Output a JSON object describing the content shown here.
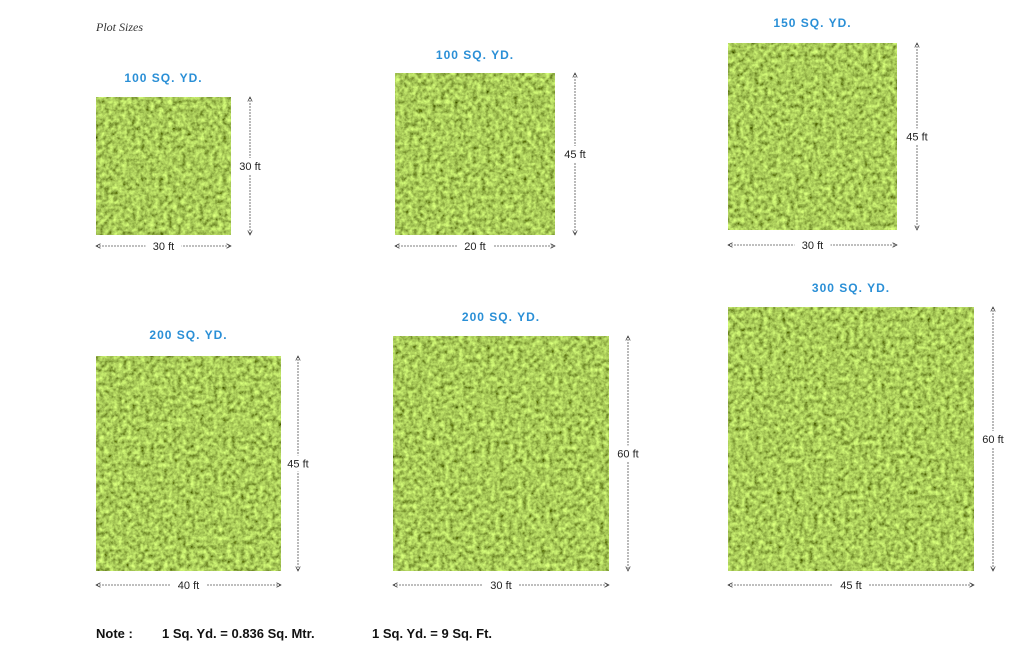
{
  "title": "Plot Sizes",
  "plots": [
    {
      "label": "100 SQ. YD.",
      "width": "30 ft",
      "height": "30 ft"
    },
    {
      "label": "100 SQ. YD.",
      "width": "20 ft",
      "height": "45 ft"
    },
    {
      "label": "150 SQ. YD.",
      "width": "30 ft",
      "height": "45 ft"
    },
    {
      "label": "200 SQ. YD.",
      "width": "40 ft",
      "height": "45 ft"
    },
    {
      "label": "200 SQ. YD.",
      "width": "30 ft",
      "height": "60 ft"
    },
    {
      "label": "300 SQ. YD.",
      "width": "45 ft",
      "height": "60 ft"
    }
  ],
  "note": {
    "label": "Note :",
    "items": [
      "1 Sq. Yd. = 0.836 Sq. Mtr.",
      "1 Sq. Yd. = 9 Sq. Ft."
    ]
  }
}
